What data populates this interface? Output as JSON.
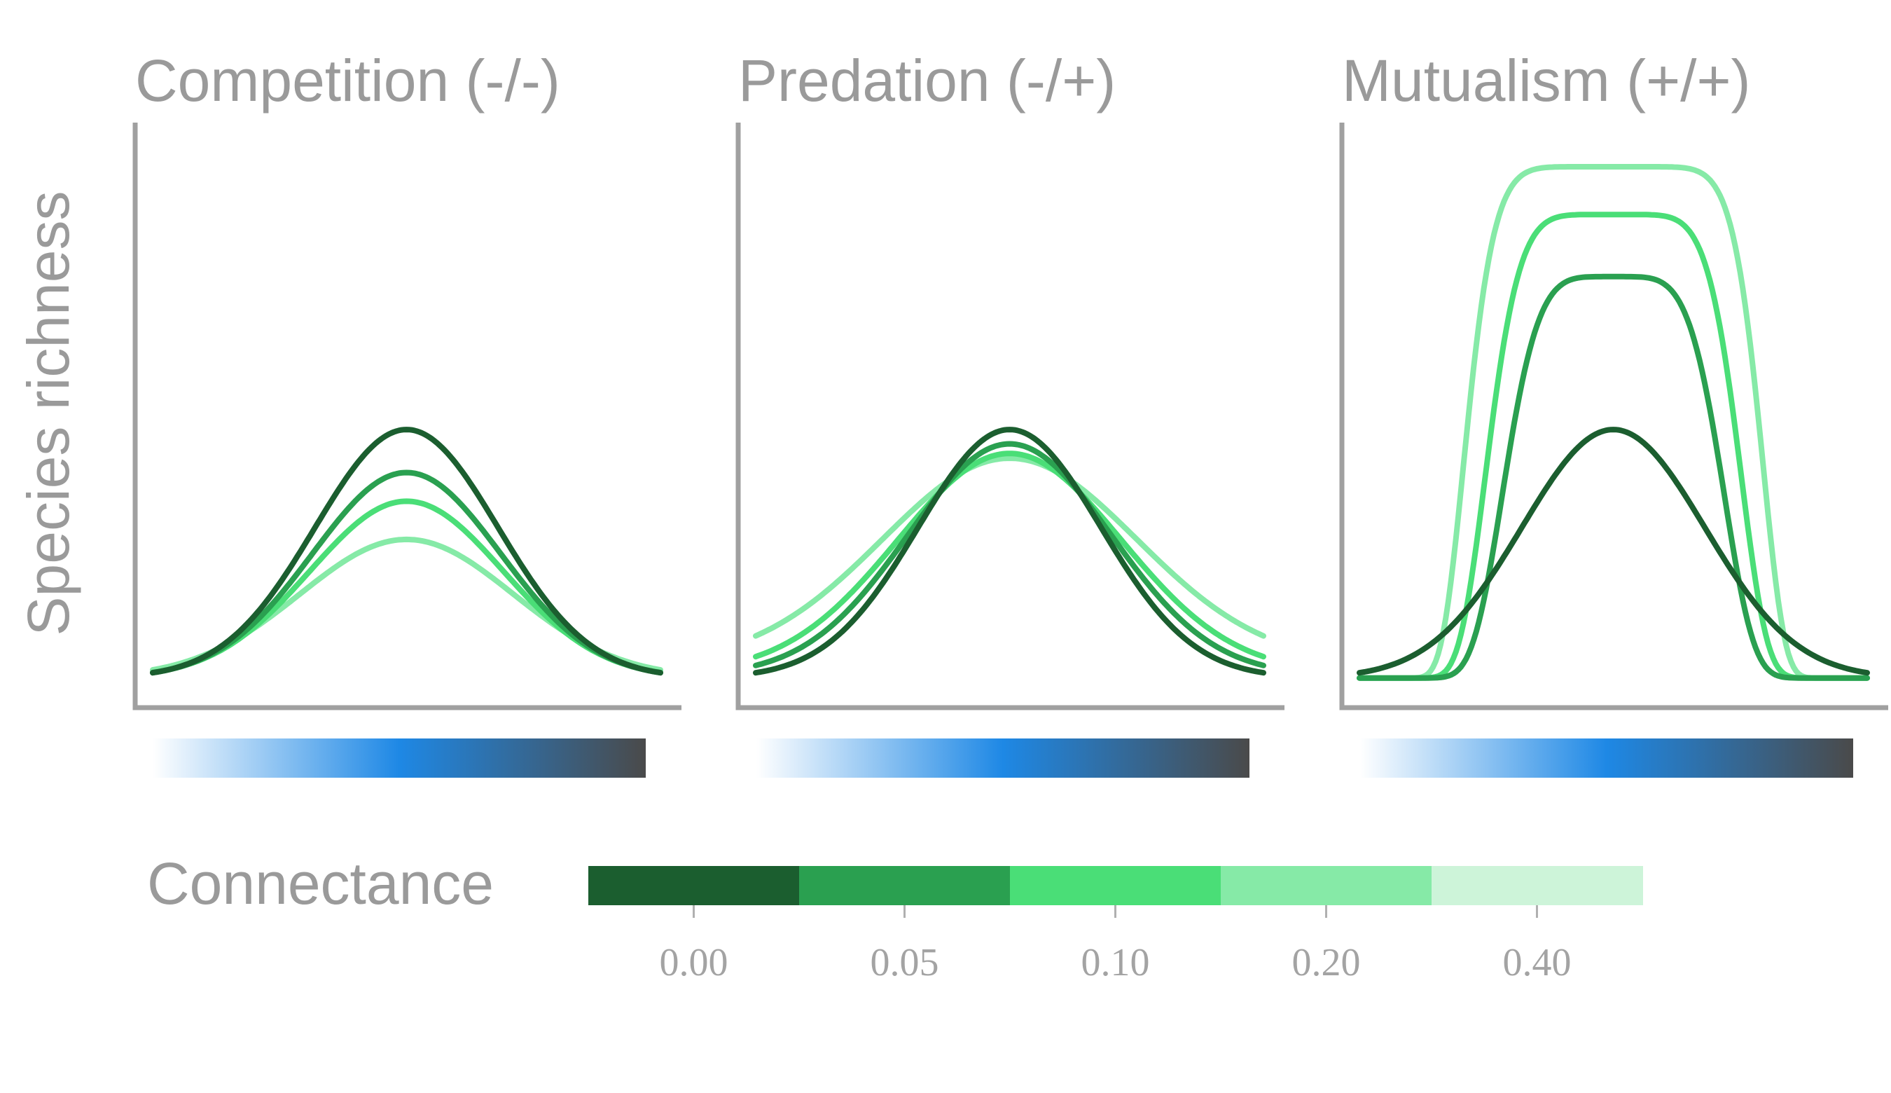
{
  "chart_data": {
    "type": "line",
    "ylabel": "Species richness",
    "xlabel": "",
    "ylim": [
      0,
      1
    ],
    "x": [
      -1,
      1
    ],
    "x_gradient_colors": [
      "#ffffff",
      "#1e88e5",
      "#4a4a4a"
    ],
    "legend": {
      "title": "Connectance",
      "placement": "bottom",
      "levels": [
        "0.00",
        "0.05",
        "0.10",
        "0.20",
        "0.40"
      ],
      "colors": [
        "#1b5e2f",
        "#2aa050",
        "#4ade77",
        "#86eaa7",
        "#cdf4d9"
      ]
    },
    "panels": [
      {
        "title": "Competition (-/-)",
        "series": [
          {
            "connectance": "0.00",
            "color": "#1b5e2f",
            "shape": "gauss",
            "base": 0.04,
            "peak": 0.56,
            "width": 0.36
          },
          {
            "connectance": "0.05",
            "color": "#2aa050",
            "shape": "gauss",
            "base": 0.04,
            "peak": 0.47,
            "width": 0.37
          },
          {
            "connectance": "0.10",
            "color": "#4ade77",
            "shape": "gauss",
            "base": 0.04,
            "peak": 0.41,
            "width": 0.38
          },
          {
            "connectance": "0.20",
            "color": "#86eaa7",
            "shape": "gauss",
            "base": 0.04,
            "peak": 0.33,
            "width": 0.42
          }
        ]
      },
      {
        "title": "Predation (-/+)",
        "series": [
          {
            "connectance": "0.00",
            "color": "#1b5e2f",
            "shape": "gauss",
            "base": 0.04,
            "peak": 0.56,
            "width": 0.36
          },
          {
            "connectance": "0.05",
            "color": "#2aa050",
            "shape": "gauss",
            "base": 0.045,
            "peak": 0.53,
            "width": 0.4
          },
          {
            "connectance": "0.10",
            "color": "#4ade77",
            "shape": "gauss",
            "base": 0.05,
            "peak": 0.51,
            "width": 0.44
          },
          {
            "connectance": "0.20",
            "color": "#86eaa7",
            "shape": "gauss",
            "base": 0.07,
            "peak": 0.5,
            "width": 0.5
          }
        ]
      },
      {
        "title": "Mutualism (+/+)",
        "series": [
          {
            "connectance": "0.00",
            "color": "#1b5e2f",
            "shape": "gauss",
            "base": 0.04,
            "peak": 0.56,
            "width": 0.36
          },
          {
            "connectance": "0.05",
            "color": "#2aa050",
            "shape": "super",
            "base": 0.04,
            "peak": 0.88,
            "width": 0.46,
            "power": 2.4
          },
          {
            "connectance": "0.10",
            "color": "#4ade77",
            "shape": "super",
            "base": 0.04,
            "peak": 1.01,
            "width": 0.52,
            "power": 3.0
          },
          {
            "connectance": "0.20",
            "color": "#86eaa7",
            "shape": "super",
            "base": 0.04,
            "peak": 1.11,
            "width": 0.6,
            "power": 4.0
          }
        ]
      }
    ]
  }
}
